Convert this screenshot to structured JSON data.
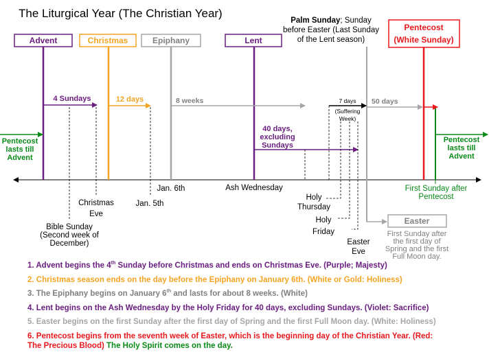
{
  "title": "The Liturgical Year (The Christian Year)",
  "colors": {
    "purple": "#6a1f80",
    "orange": "#f4a423",
    "gray": "#a6a6a6",
    "red": "#e8181c",
    "green": "#0a8a18",
    "darkgray": "#808080"
  },
  "seasons": {
    "advent": "Advent",
    "christmas": "Christmas",
    "epiphany": "Epiphany",
    "lent": "Lent",
    "pentecost_line1": "Pentecost",
    "pentecost_line2": "(White Sunday)",
    "easter": "Easter"
  },
  "palm_sunday": {
    "bold": "Palm Sunday",
    "rest_line1": "; Sunday",
    "line2": "before Easter (Last Sunday",
    "line3": "of the Lent season)"
  },
  "durations": {
    "advent": "4 Sundays",
    "christmas": "12 days",
    "epiphany": "8 weeks",
    "lent_line1": "40 days,",
    "lent_line2": "excluding",
    "lent_line3": "Sundays",
    "holy_week": "7 days",
    "suffering_line1": "(Suffering",
    "suffering_line2": "Week)",
    "easter": "50 days"
  },
  "pentecost_left": {
    "line1": "Pentecost",
    "line2": "lasts till",
    "line3": "Advent"
  },
  "pentecost_right": {
    "line1": "Pentecost",
    "line2": "lasts till",
    "line3": "Advent"
  },
  "events": {
    "jan6": "Jan. 6th",
    "jan5": "Jan. 5th",
    "ash_wednesday": "Ash Wednesday",
    "christmas_eve_1": "Christmas",
    "christmas_eve_2": "Eve",
    "bible_sunday_1": "Bible Sunday",
    "bible_sunday_2": "(Second week of",
    "bible_sunday_3": "December)",
    "holy_thursday_1": "Holy",
    "holy_thursday_2": "Thursday",
    "holy_friday_1": "Holy",
    "holy_friday_2": "Friday",
    "easter_eve_1": "Easter",
    "easter_eve_2": "Eve",
    "first_sunday_1": "First Sunday after",
    "first_sunday_2": "Pentecost",
    "easter_desc_1": "First Sunday after",
    "easter_desc_2": "the first day of",
    "easter_desc_3": "Spring and the first",
    "easter_desc_4": "Full Moon day."
  },
  "notes": {
    "n1a": "1. Advent begins the 4",
    "n1sup": "th",
    "n1b": " Sunday before Christmas and ends on Christmas Eve. (Purple; Majesty)",
    "n2": "2. Christmas season ends on the day before the Epiphany on January 6th. (White or Gold: Holiness)",
    "n3a": "3. The Epiphany begins on January 6",
    "n3sup": "th",
    "n3b": " and lasts for about 8 weeks. (White)",
    "n4": "4. Lent begins on the Ash Wednesday by the Holy Friday for 40 days, excluding Sundays. (Violet: Sacrifice)",
    "n5": "5. Easter begins on the first Sunday after the first day of Spring and the first Full Moon day. (White: Holiness)",
    "n6a": "6. Pentecost begins from the seventh week of Easter, which is the beginning day of the Christian Year. (Red:",
    "n6b": "The Precious Blood)",
    "n6c": " The Holy Spirit comes on the day."
  }
}
